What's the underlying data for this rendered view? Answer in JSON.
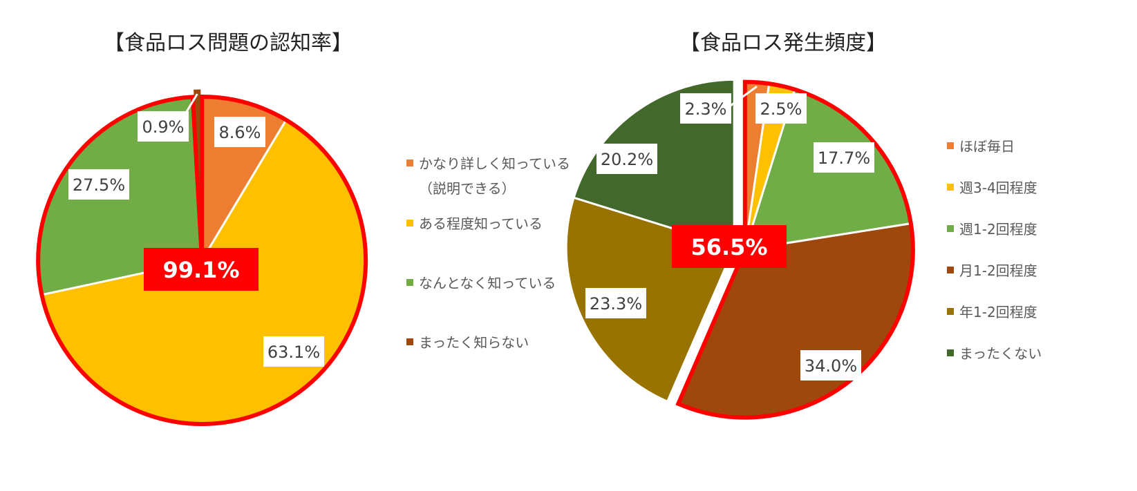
{
  "chart_data": [
    {
      "type": "pie",
      "title": "【食品ロス問題の認知率】",
      "slices": [
        {
          "label": "かなり詳しく知っている",
          "label_line2": "（説明できる）",
          "value": 8.6,
          "display": "8.6%",
          "color": "#ED7D31"
        },
        {
          "label": "ある程度知っている",
          "value": 63.1,
          "display": "63.1%",
          "color": "#FFC000"
        },
        {
          "label": "なんとなく知っている",
          "value": 27.5,
          "display": "27.5%",
          "color": "#70AD47"
        },
        {
          "label": "まったく知らない",
          "value": 0.9,
          "display": "0.9%",
          "color": "#9E480E"
        }
      ],
      "highlight": {
        "text": "99.1%",
        "covers": [
          "かなり詳しく知っている",
          "ある程度知っている",
          "なんとなく知っている"
        ],
        "color": "#FF0000"
      }
    },
    {
      "type": "pie",
      "title": "【食品ロス発生頻度】",
      "slices": [
        {
          "label": "ほぼ毎日",
          "value": 2.3,
          "display": "2.3%",
          "color": "#ED7D31"
        },
        {
          "label": "週3-4回程度",
          "value": 2.5,
          "display": "2.5%",
          "color": "#FFC000"
        },
        {
          "label": "週1-2回程度",
          "value": 17.7,
          "display": "17.7%",
          "color": "#70AD47"
        },
        {
          "label": "月1-2回程度",
          "value": 34.0,
          "display": "34.0%",
          "color": "#9E480E"
        },
        {
          "label": "年1-2回程度",
          "value": 23.3,
          "display": "23.3%",
          "color": "#997300"
        },
        {
          "label": "まったくない",
          "value": 20.2,
          "display": "20.2%",
          "color": "#43682B"
        }
      ],
      "highlight": {
        "text": "56.5%",
        "covers": [
          "ほぼ毎日",
          "週3-4回程度",
          "週1-2回程度",
          "月1-2回程度"
        ],
        "color": "#FF0000"
      }
    }
  ]
}
